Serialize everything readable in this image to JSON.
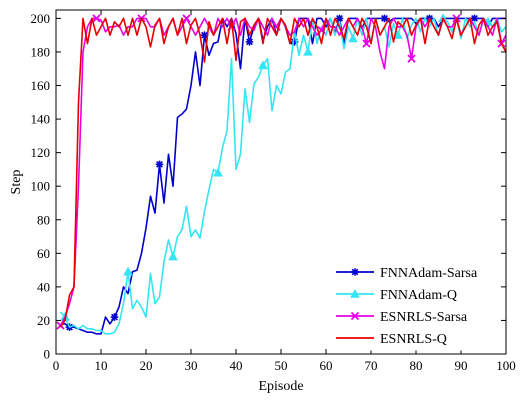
{
  "chart_data": {
    "type": "line",
    "title": "",
    "xlabel": "Episode",
    "ylabel": "Step",
    "xlim": [
      0,
      100
    ],
    "ylim": [
      0,
      205
    ],
    "xticks": [
      0,
      10,
      20,
      30,
      40,
      50,
      60,
      70,
      80,
      90,
      100
    ],
    "yticks": [
      0,
      20,
      40,
      60,
      80,
      100,
      120,
      140,
      160,
      180,
      200
    ],
    "grid": false,
    "legend_position": "bottom-right",
    "series": [
      {
        "name": "FNNAdam-Sarsa",
        "color": "#0000cc",
        "marker": "star",
        "marker_x": [
          3,
          13,
          23,
          33,
          43,
          53,
          63,
          73,
          83,
          93
        ],
        "x": [
          1,
          2,
          3,
          4,
          5,
          6,
          7,
          8,
          9,
          10,
          11,
          12,
          13,
          14,
          15,
          16,
          17,
          18,
          19,
          20,
          21,
          22,
          23,
          24,
          25,
          26,
          27,
          28,
          29,
          30,
          31,
          32,
          33,
          34,
          35,
          36,
          37,
          38,
          39,
          40,
          41,
          42,
          43,
          44,
          45,
          46,
          47,
          48,
          49,
          50,
          51,
          52,
          53,
          54,
          55,
          56,
          57,
          58,
          59,
          60,
          61,
          62,
          63,
          64,
          65,
          66,
          67,
          68,
          69,
          70,
          71,
          72,
          73,
          74,
          75,
          76,
          77,
          78,
          79,
          80,
          81,
          82,
          83,
          84,
          85,
          86,
          87,
          88,
          89,
          90,
          91,
          92,
          93,
          94,
          95,
          96,
          97,
          98,
          99,
          100
        ],
        "y": [
          18,
          18,
          16,
          16,
          15,
          14,
          13,
          13,
          12,
          12,
          22,
          18,
          22,
          28,
          40,
          36,
          49,
          50,
          60,
          75,
          94,
          84,
          113,
          90,
          119,
          100,
          141,
          143,
          146,
          160,
          180,
          160,
          190,
          178,
          185,
          186,
          200,
          195,
          200,
          191,
          170,
          200,
          186,
          195,
          200,
          187,
          195,
          200,
          190,
          200,
          195,
          185,
          186,
          200,
          200,
          200,
          185,
          200,
          200,
          195,
          200,
          191,
          200,
          185,
          200,
          200,
          200,
          194,
          200,
          200,
          200,
          200,
          200,
          198,
          200,
          200,
          200,
          200,
          200,
          197,
          200,
          200,
          200,
          200,
          195,
          200,
          200,
          200,
          200,
          200,
          200,
          200,
          200,
          200,
          200,
          195,
          200,
          200,
          200,
          200
        ]
      },
      {
        "name": "FNNAdam-Q",
        "color": "#33e6f2",
        "marker": "triangle",
        "marker_x": [
          2,
          16,
          26,
          36,
          46,
          56,
          66,
          76,
          86,
          96
        ],
        "x": [
          1,
          2,
          3,
          4,
          5,
          6,
          7,
          8,
          9,
          10,
          11,
          12,
          13,
          14,
          15,
          16,
          17,
          18,
          19,
          20,
          21,
          22,
          23,
          24,
          25,
          26,
          27,
          28,
          29,
          30,
          31,
          32,
          33,
          34,
          35,
          36,
          37,
          38,
          39,
          40,
          41,
          42,
          43,
          44,
          45,
          46,
          47,
          48,
          49,
          50,
          51,
          52,
          53,
          54,
          55,
          56,
          57,
          58,
          59,
          60,
          61,
          62,
          63,
          64,
          65,
          66,
          67,
          68,
          69,
          70,
          71,
          72,
          73,
          74,
          75,
          76,
          77,
          78,
          79,
          80,
          81,
          82,
          83,
          84,
          85,
          86,
          87,
          88,
          89,
          90,
          91,
          92,
          93,
          94,
          95,
          96,
          97,
          98,
          99,
          100
        ],
        "y": [
          25,
          22,
          16,
          17,
          15,
          17,
          15,
          15,
          14,
          14,
          12,
          12,
          13,
          18,
          30,
          49,
          27,
          32,
          28,
          22,
          48,
          30,
          34,
          55,
          68,
          58,
          70,
          74,
          88,
          70,
          74,
          69,
          85,
          98,
          110,
          108,
          123,
          133,
          176,
          110,
          119,
          158,
          138,
          161,
          165,
          172,
          176,
          145,
          160,
          155,
          168,
          170,
          192,
          178,
          190,
          180,
          200,
          185,
          195,
          190,
          200,
          190,
          198,
          182,
          195,
          188,
          200,
          190,
          200,
          185,
          200,
          190,
          195,
          183,
          197,
          190,
          200,
          188,
          196,
          200,
          192,
          200,
          195,
          200,
          190,
          200,
          198,
          192,
          200,
          188,
          200,
          195,
          198,
          190,
          200,
          198,
          195,
          200,
          192,
          195
        ]
      },
      {
        "name": "ESNRLS-Sarsa",
        "color": "#e600e6",
        "marker": "x",
        "marker_x": [
          1,
          9,
          19,
          29,
          39,
          49,
          59,
          69,
          79,
          89,
          99
        ],
        "x": [
          1,
          2,
          3,
          4,
          5,
          6,
          7,
          8,
          9,
          10,
          11,
          12,
          13,
          14,
          15,
          16,
          17,
          18,
          19,
          20,
          21,
          22,
          23,
          24,
          25,
          26,
          27,
          28,
          29,
          30,
          31,
          32,
          33,
          34,
          35,
          36,
          37,
          38,
          39,
          40,
          41,
          42,
          43,
          44,
          45,
          46,
          47,
          48,
          49,
          50,
          51,
          52,
          53,
          54,
          55,
          56,
          57,
          58,
          59,
          60,
          61,
          62,
          63,
          64,
          65,
          66,
          67,
          68,
          69,
          70,
          71,
          72,
          73,
          74,
          75,
          76,
          77,
          78,
          79,
          80,
          81,
          82,
          83,
          84,
          85,
          86,
          87,
          88,
          89,
          90,
          91,
          92,
          93,
          94,
          95,
          96,
          97,
          98,
          99,
          100
        ],
        "y": [
          17,
          22,
          30,
          40,
          100,
          180,
          195,
          200,
          200,
          199,
          192,
          195,
          195,
          196,
          190,
          195,
          195,
          200,
          200,
          200,
          195,
          195,
          200,
          190,
          195,
          200,
          190,
          195,
          200,
          195,
          190,
          195,
          200,
          195,
          190,
          200,
          195,
          200,
          195,
          200,
          190,
          200,
          195,
          193,
          200,
          195,
          190,
          200,
          195,
          200,
          195,
          190,
          192,
          200,
          195,
          200,
          195,
          190,
          193,
          200,
          195,
          195,
          190,
          195,
          200,
          195,
          200,
          195,
          185,
          200,
          195,
          180,
          170,
          195,
          200,
          195,
          195,
          190,
          176,
          195,
          200,
          195,
          200,
          195,
          190,
          200,
          195,
          195,
          200,
          190,
          195,
          200,
          195,
          190,
          200,
          195,
          190,
          200,
          185,
          190
        ]
      },
      {
        "name": "ESNRLS-Q",
        "color": "#e60000",
        "marker": "none",
        "marker_x": [],
        "x": [
          1,
          2,
          3,
          4,
          5,
          6,
          7,
          8,
          9,
          10,
          11,
          12,
          13,
          14,
          15,
          16,
          17,
          18,
          19,
          20,
          21,
          22,
          23,
          24,
          25,
          26,
          27,
          28,
          29,
          30,
          31,
          32,
          33,
          34,
          35,
          36,
          37,
          38,
          39,
          40,
          41,
          42,
          43,
          44,
          45,
          46,
          47,
          48,
          49,
          50,
          51,
          52,
          53,
          54,
          55,
          56,
          57,
          58,
          59,
          60,
          61,
          62,
          63,
          64,
          65,
          66,
          67,
          68,
          69,
          70,
          71,
          72,
          73,
          74,
          75,
          76,
          77,
          78,
          79,
          80,
          81,
          82,
          83,
          84,
          85,
          86,
          87,
          88,
          89,
          90,
          91,
          92,
          93,
          94,
          95,
          96,
          97,
          98,
          99,
          100
        ],
        "y": [
          16,
          20,
          35,
          40,
          150,
          200,
          185,
          200,
          190,
          195,
          200,
          190,
          198,
          195,
          200,
          190,
          200,
          190,
          200,
          195,
          183,
          196,
          200,
          185,
          195,
          200,
          190,
          200,
          185,
          196,
          200,
          190,
          174,
          198,
          190,
          195,
          200,
          185,
          200,
          175,
          198,
          200,
          190,
          196,
          200,
          185,
          200,
          195,
          190,
          200,
          196,
          185,
          200,
          195,
          200,
          190,
          200,
          195,
          185,
          200,
          190,
          200,
          195,
          188,
          200,
          195,
          190,
          200,
          195,
          185,
          200,
          190,
          195,
          200,
          186,
          198,
          195,
          200,
          190,
          196,
          200,
          185,
          200,
          195,
          190,
          200,
          195,
          188,
          200,
          190,
          195,
          200,
          185,
          196,
          200,
          190,
          195,
          198,
          185,
          180
        ]
      }
    ]
  }
}
